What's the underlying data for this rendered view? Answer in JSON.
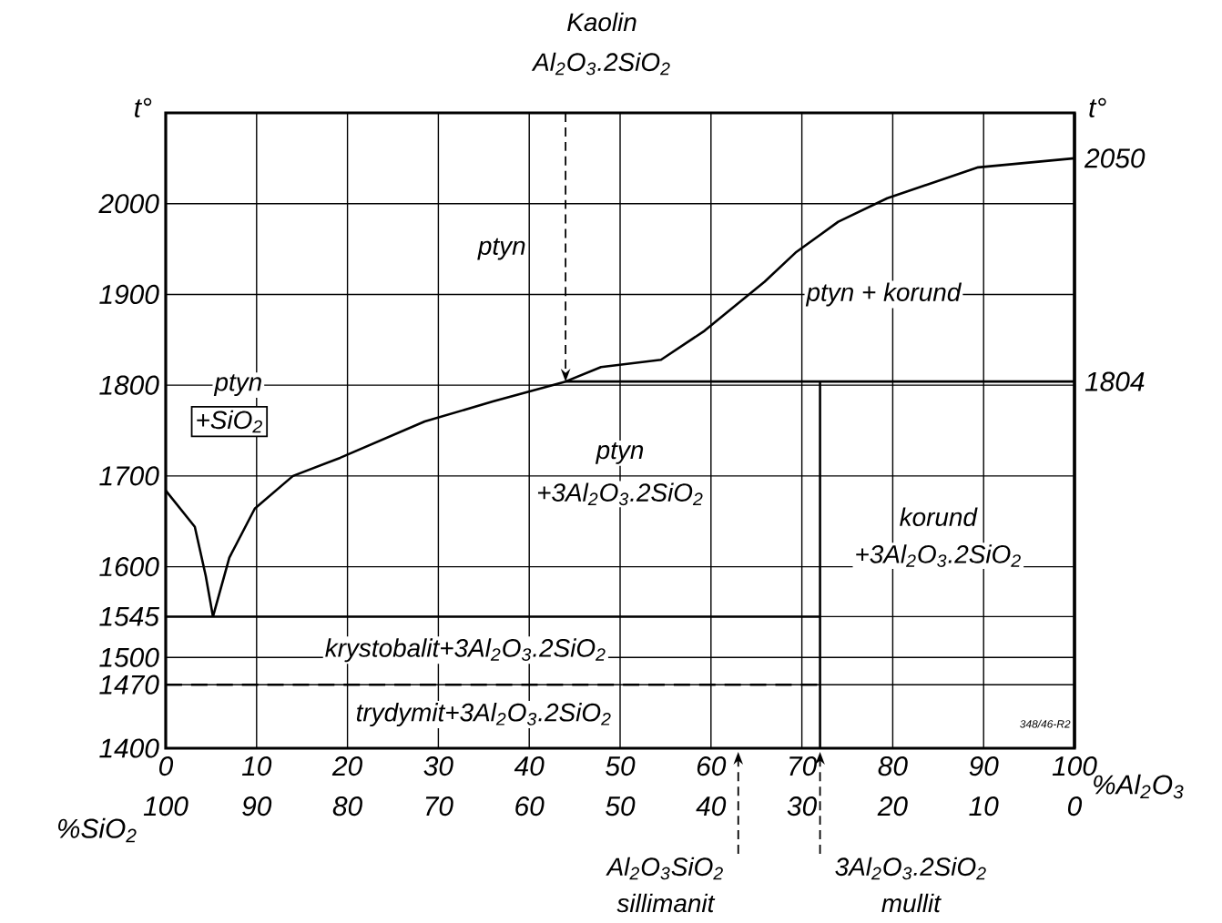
{
  "chart_data": {
    "type": "line",
    "xlabel": "%Al$_{2}$O$_{3}$",
    "x2label": "%SiO$_{2}$",
    "ylabel": "t°",
    "y2label": "t°",
    "xlim": [
      0,
      100
    ],
    "xticks": [
      0,
      10,
      20,
      30,
      40,
      50,
      60,
      70,
      80,
      90,
      100
    ],
    "x2lim": [
      100,
      0
    ],
    "x2ticks": [
      100,
      90,
      80,
      70,
      60,
      50,
      40,
      30,
      20,
      10,
      0
    ],
    "ylim": [
      1400,
      2100
    ],
    "yticks": [
      1400,
      1470,
      1500,
      1545,
      1600,
      1700,
      1800,
      1900,
      2000
    ],
    "y2lim": [
      1400,
      2100
    ],
    "y2ticks": [
      1804,
      2050
    ],
    "grid": true,
    "series": [
      {
        "color": "#000000",
        "x": [
          0,
          3.2,
          4.4,
          5.2
        ],
        "values": [
          1684,
          1644,
          1590,
          1545
        ]
      },
      {
        "color": "#000000",
        "x": [
          5.2,
          7,
          9.8,
          14,
          19.2,
          28.5,
          36,
          44,
          47.9,
          54.5,
          59.3,
          65.9,
          69.3,
          74,
          79.4,
          89.4,
          100
        ],
        "values": [
          1545,
          1610,
          1664,
          1700,
          1720,
          1760,
          1782,
          1804,
          1820,
          1828,
          1860,
          1914,
          1946,
          1980,
          2006,
          2040,
          2050
        ]
      },
      {
        "color": "#000000",
        "x": [
          0,
          72
        ],
        "values": [
          1545,
          1545
        ]
      },
      {
        "color": "#000000",
        "x": [
          0,
          72
        ],
        "values": [
          1470,
          1470
        ],
        "line_style": "dashed"
      },
      {
        "color": "#000000",
        "x": [
          44,
          100
        ],
        "values": [
          1804,
          1804
        ]
      },
      {
        "color": "#000000",
        "x": [
          72,
          72
        ],
        "values": [
          1400,
          1804
        ]
      }
    ],
    "annotations": [
      "ptyn",
      "ptyn + korund",
      "ptyn",
      "+SiO$_{2}$",
      "ptyn",
      "+3Al$_{2}$O$_{3}$.2SiO$_{2}$",
      "korund",
      "+3Al$_{2}$O$_{3}$.2SiO$_{2}$",
      "krystobalit+3Al$_{2}$O$_{3}$.2SiO$_{2}$",
      "trydymit+3Al$_{2}$O$_{3}$.2SiO$_{2}$",
      "Kaolin",
      "Al$_{2}$O$_{3}$.2SiO$_{2}$",
      "Al$_{2}$O$_{3}$SiO$_{2}$",
      "sillimanit",
      "3Al$_{2}$O$_{3}$.2SiO$_{2}$",
      "mullit",
      "348/46-R2"
    ]
  }
}
